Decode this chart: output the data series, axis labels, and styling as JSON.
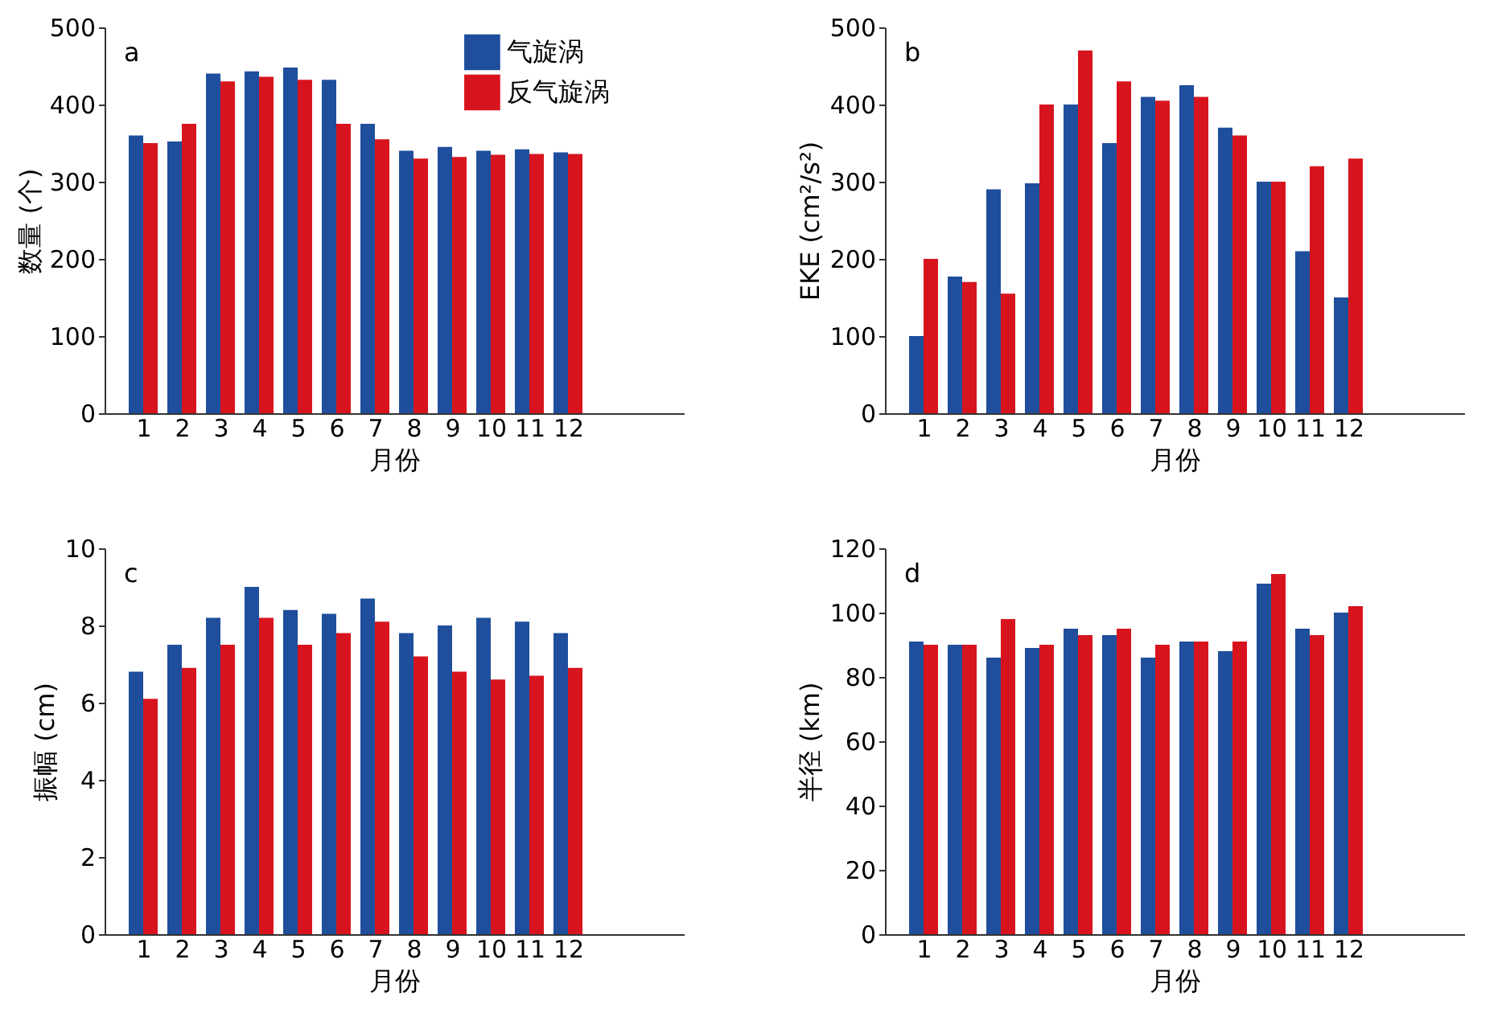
{
  "chart_data": [
    {
      "type": "bar",
      "annotations": [
        "a"
      ],
      "xlabel": "月份",
      "ylabel": "数量 (个)",
      "x": [
        1,
        2,
        3,
        4,
        5,
        6,
        7,
        8,
        9,
        10,
        11,
        12
      ],
      "xlim": [
        0,
        15
      ],
      "xticks": [
        1,
        2,
        3,
        4,
        5,
        6,
        7,
        8,
        9,
        10,
        11,
        12
      ],
      "ylim": [
        0,
        500
      ],
      "yticks": [
        0,
        100,
        200,
        300,
        400,
        500
      ],
      "grid": false,
      "legend": "top right",
      "series": [
        {
          "name": "气旋涡",
          "color": "#1f4e9c",
          "values": [
            360,
            352,
            440,
            443,
            448,
            432,
            375,
            340,
            345,
            340,
            342,
            338
          ]
        },
        {
          "name": "反气旋涡",
          "color": "#d7141e",
          "values": [
            350,
            375,
            430,
            436,
            432,
            375,
            355,
            330,
            332,
            335,
            336,
            336
          ]
        }
      ]
    },
    {
      "type": "bar",
      "annotations": [
        "b"
      ],
      "xlabel": "月份",
      "ylabel": "EKE (cm²/s²)",
      "x": [
        1,
        2,
        3,
        4,
        5,
        6,
        7,
        8,
        9,
        10,
        11,
        12
      ],
      "xlim": [
        0,
        15
      ],
      "xticks": [
        1,
        2,
        3,
        4,
        5,
        6,
        7,
        8,
        9,
        10,
        11,
        12
      ],
      "ylim": [
        0,
        500
      ],
      "yticks": [
        0,
        100,
        200,
        300,
        400,
        500
      ],
      "grid": false,
      "series": [
        {
          "color": "#1f4e9c",
          "values": [
            100,
            177,
            290,
            298,
            400,
            350,
            410,
            425,
            370,
            300,
            210,
            150
          ]
        },
        {
          "color": "#d7141e",
          "values": [
            200,
            170,
            155,
            400,
            470,
            430,
            405,
            410,
            360,
            300,
            320,
            330
          ]
        }
      ]
    },
    {
      "type": "bar",
      "annotations": [
        "c"
      ],
      "xlabel": "月份",
      "ylabel": "振幅 (cm)",
      "x": [
        1,
        2,
        3,
        4,
        5,
        6,
        7,
        8,
        9,
        10,
        11,
        12
      ],
      "xlim": [
        0,
        15
      ],
      "xticks": [
        1,
        2,
        3,
        4,
        5,
        6,
        7,
        8,
        9,
        10,
        11,
        12
      ],
      "ylim": [
        0,
        10
      ],
      "yticks": [
        0,
        2,
        4,
        6,
        8,
        10
      ],
      "grid": false,
      "series": [
        {
          "color": "#1f4e9c",
          "values": [
            6.8,
            7.5,
            8.2,
            9.0,
            8.4,
            8.3,
            8.7,
            7.8,
            8.0,
            8.2,
            8.1,
            7.8
          ]
        },
        {
          "color": "#d7141e",
          "values": [
            6.1,
            6.9,
            7.5,
            8.2,
            7.5,
            7.8,
            8.1,
            7.2,
            6.8,
            6.6,
            6.7,
            6.9
          ]
        }
      ]
    },
    {
      "type": "bar",
      "annotations": [
        "d"
      ],
      "xlabel": "月份",
      "ylabel": "半径 (km)",
      "x": [
        1,
        2,
        3,
        4,
        5,
        6,
        7,
        8,
        9,
        10,
        11,
        12
      ],
      "xlim": [
        0,
        15
      ],
      "xticks": [
        1,
        2,
        3,
        4,
        5,
        6,
        7,
        8,
        9,
        10,
        11,
        12
      ],
      "ylim": [
        0,
        120
      ],
      "yticks": [
        0,
        20,
        40,
        60,
        80,
        100,
        120
      ],
      "grid": false,
      "series": [
        {
          "color": "#1f4e9c",
          "values": [
            91,
            90,
            86,
            89,
            95,
            93,
            86,
            91,
            88,
            109,
            95,
            100
          ]
        },
        {
          "color": "#d7141e",
          "values": [
            90,
            90,
            98,
            90,
            93,
            95,
            90,
            91,
            91,
            112,
            93,
            102
          ]
        }
      ]
    }
  ]
}
